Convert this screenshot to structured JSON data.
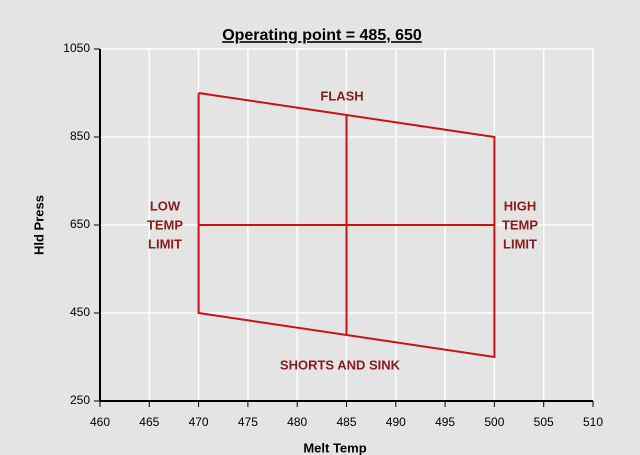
{
  "chart_data": {
    "type": "line",
    "title": "Operating point =  485,  650",
    "x_label": "Melt Temp",
    "y_label": "Hld Press",
    "xlim": [
      460,
      510
    ],
    "xticks": [
      460,
      465,
      470,
      475,
      480,
      485,
      490,
      495,
      500,
      505,
      510
    ],
    "ylim": [
      250,
      1050
    ],
    "yticks": [
      250,
      450,
      650,
      850,
      1050
    ],
    "grid": true,
    "series": [
      {
        "color": "#cc1111",
        "x": [
          470,
          500,
          500,
          470,
          470
        ],
        "values": [
          950,
          850,
          350,
          450,
          950
        ]
      },
      {
        "color": "#cc1111",
        "x": [
          485,
          485
        ],
        "values": [
          900,
          400
        ]
      },
      {
        "color": "#cc1111",
        "x": [
          470,
          500
        ],
        "values": [
          650,
          650
        ]
      }
    ],
    "annotations": [
      {
        "lines": [
          "FLASH"
        ]
      },
      {
        "lines": [
          "LOW",
          "TEMP",
          "LIMIT"
        ]
      },
      {
        "lines": [
          "HIGH",
          "TEMP",
          "LIMIT"
        ]
      },
      {
        "lines": [
          "SHORTS AND SINK"
        ]
      }
    ]
  }
}
